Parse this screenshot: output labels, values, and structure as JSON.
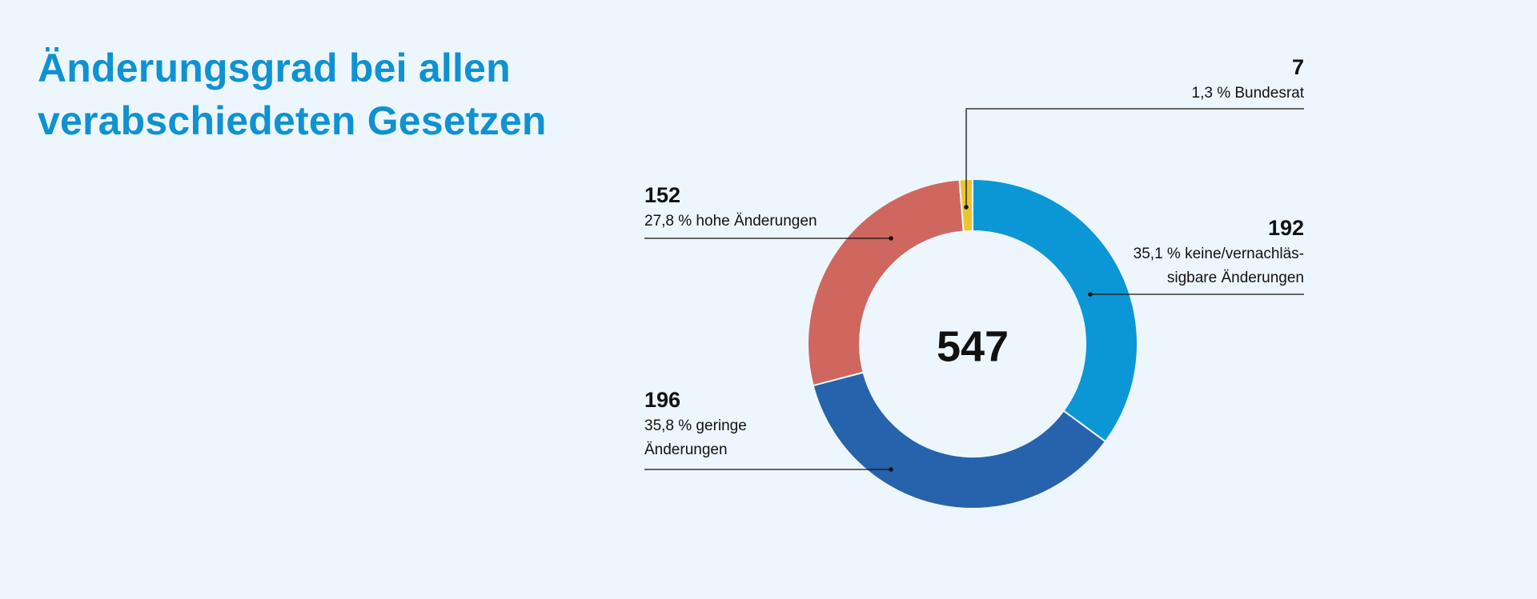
{
  "title": "Änderungsgrad bei allen verabschiedeten Gesetzen",
  "chart_data": {
    "type": "pie",
    "variant": "donut",
    "title": "Änderungsgrad bei allen verabschiedeten Gesetzen",
    "total": "547",
    "slices": [
      {
        "key": "keine",
        "value": 192,
        "number": "192",
        "text": "35,1 % keine/vernachläs­sigbare Änderungen",
        "color": "#0b97d6"
      },
      {
        "key": "geringe",
        "value": 196,
        "number": "196",
        "text": "35,8 % geringe Änderungen",
        "color": "#2663ac"
      },
      {
        "key": "hohe",
        "value": 152,
        "number": "152",
        "text": "27,8 % hohe Änderungen",
        "color": "#d0675e"
      },
      {
        "key": "bundesrat",
        "value": 7,
        "number": "7",
        "text": "1,3 % Bundesrat",
        "color": "#ecc52e"
      }
    ]
  }
}
